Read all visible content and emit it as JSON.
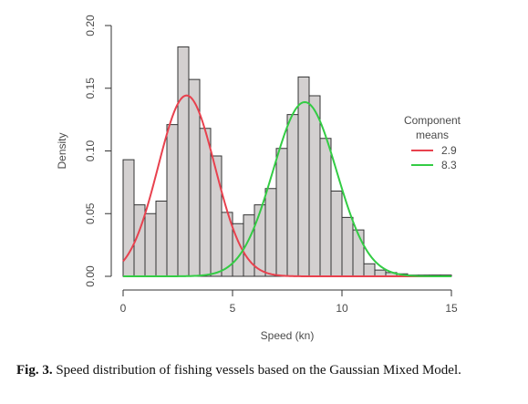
{
  "chart_data": {
    "type": "bar",
    "subtype": "histogram with fitted gaussian mixture curves",
    "xlabel": "Speed (kn)",
    "ylabel": "Density",
    "xlim": [
      0,
      15
    ],
    "ylim": [
      0,
      0.2
    ],
    "x_ticks": [
      "0",
      "5",
      "10",
      "15"
    ],
    "y_ticks": [
      "0.00",
      "0.05",
      "0.10",
      "0.15",
      "0.20"
    ],
    "bin_width": 0.5,
    "bins_start": [
      0,
      0.5,
      1,
      1.5,
      2,
      2.5,
      3,
      3.5,
      4,
      4.5,
      5,
      5.5,
      6,
      6.5,
      7,
      7.5,
      8,
      8.5,
      9,
      9.5,
      10,
      10.5,
      11,
      11.5,
      12,
      12.5,
      13,
      13.5,
      14,
      14.5
    ],
    "density": [
      0.093,
      0.057,
      0.05,
      0.06,
      0.121,
      0.183,
      0.157,
      0.118,
      0.096,
      0.051,
      0.042,
      0.049,
      0.057,
      0.07,
      0.102,
      0.129,
      0.159,
      0.144,
      0.11,
      0.068,
      0.047,
      0.037,
      0.01,
      0.005,
      0.003,
      0.002,
      0.001,
      0.001,
      0.001,
      0.001
    ],
    "bar_fill": "#d3d0d0",
    "bar_stroke": "#333333",
    "legend": {
      "title_line1": "Component",
      "title_line2": "means",
      "placement": "right",
      "entries": [
        {
          "label": "2.9",
          "color": "#e8414e"
        },
        {
          "label": "8.3",
          "color": "#33cc44"
        }
      ]
    },
    "series": [
      {
        "mean": 2.9,
        "sd": 1.3,
        "weight": 0.47,
        "color": "#e8414e"
      },
      {
        "mean": 8.3,
        "sd": 1.45,
        "weight": 0.505,
        "color": "#33cc44"
      }
    ]
  },
  "caption": {
    "prefix": "Fig. 3.",
    "text": " Speed distribution of fishing vessels based on the Gaussian Mixed Model."
  }
}
